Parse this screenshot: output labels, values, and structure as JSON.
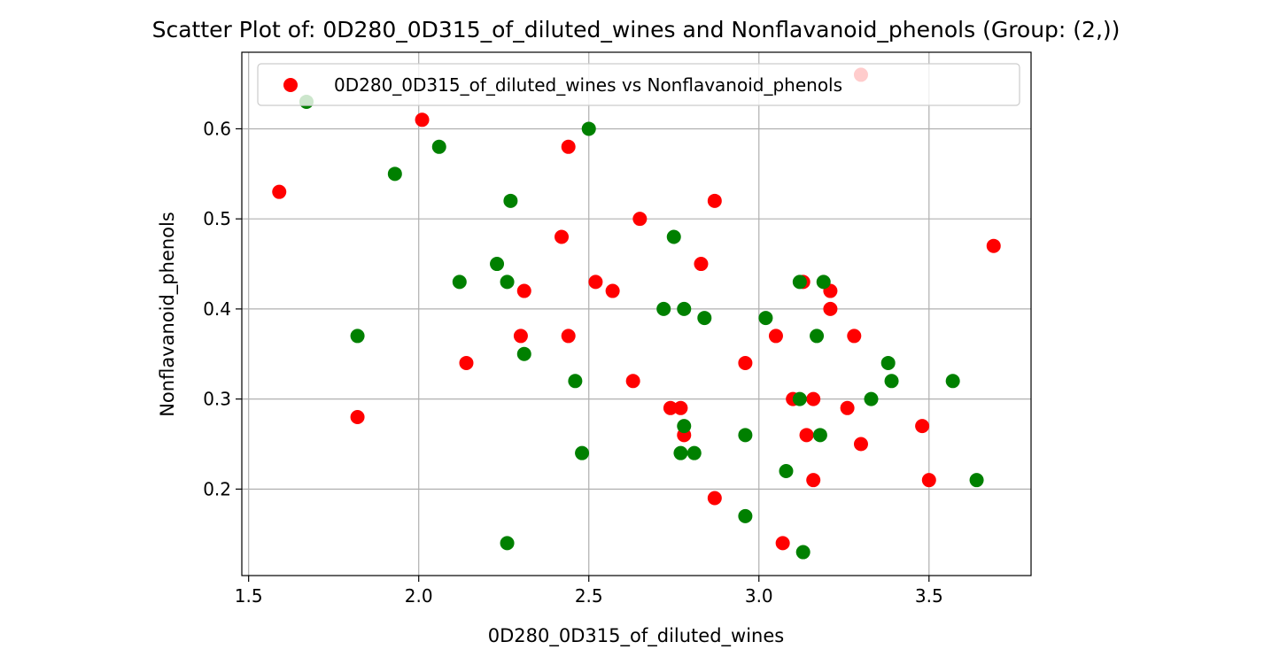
{
  "chart_data": {
    "type": "scatter",
    "title": "Scatter Plot of: 0D280_0D315_of_diluted_wines and Nonflavanoid_phenols (Group: (2,))",
    "xlabel": "0D280_0D315_of_diluted_wines",
    "ylabel": "Nonflavanoid_phenols",
    "xlim": [
      1.48,
      3.8
    ],
    "ylim": [
      0.104,
      0.685
    ],
    "xticks": [
      1.5,
      2.0,
      2.5,
      3.0,
      3.5
    ],
    "xtick_labels": [
      "1.5",
      "2.0",
      "2.5",
      "3.0",
      "3.5"
    ],
    "yticks": [
      0.2,
      0.3,
      0.4,
      0.5,
      0.6
    ],
    "ytick_labels": [
      "0.2",
      "0.3",
      "0.4",
      "0.5",
      "0.6"
    ],
    "grid": true,
    "legend": {
      "placement": "top",
      "label": "0D280_0D315_of_diluted_wines vs Nonflavanoid_phenols",
      "marker_color": "#ff0000"
    },
    "colors": {
      "red": "#ff0000",
      "green": "#008000"
    },
    "points": [
      {
        "x": 1.59,
        "y": 0.53,
        "color": "red"
      },
      {
        "x": 1.82,
        "y": 0.28,
        "color": "red"
      },
      {
        "x": 2.01,
        "y": 0.61,
        "color": "red"
      },
      {
        "x": 2.14,
        "y": 0.34,
        "color": "red"
      },
      {
        "x": 2.3,
        "y": 0.37,
        "color": "red"
      },
      {
        "x": 2.31,
        "y": 0.42,
        "color": "red"
      },
      {
        "x": 2.42,
        "y": 0.48,
        "color": "red"
      },
      {
        "x": 2.44,
        "y": 0.58,
        "color": "red"
      },
      {
        "x": 2.44,
        "y": 0.37,
        "color": "red"
      },
      {
        "x": 2.52,
        "y": 0.43,
        "color": "red"
      },
      {
        "x": 2.57,
        "y": 0.42,
        "color": "red"
      },
      {
        "x": 2.63,
        "y": 0.32,
        "color": "red"
      },
      {
        "x": 2.65,
        "y": 0.5,
        "color": "red"
      },
      {
        "x": 2.74,
        "y": 0.29,
        "color": "red"
      },
      {
        "x": 2.77,
        "y": 0.29,
        "color": "red"
      },
      {
        "x": 2.78,
        "y": 0.26,
        "color": "red"
      },
      {
        "x": 2.83,
        "y": 0.45,
        "color": "red"
      },
      {
        "x": 2.87,
        "y": 0.52,
        "color": "red"
      },
      {
        "x": 2.87,
        "y": 0.19,
        "color": "red"
      },
      {
        "x": 2.96,
        "y": 0.34,
        "color": "red"
      },
      {
        "x": 3.05,
        "y": 0.37,
        "color": "red"
      },
      {
        "x": 3.07,
        "y": 0.14,
        "color": "red"
      },
      {
        "x": 3.1,
        "y": 0.3,
        "color": "red"
      },
      {
        "x": 3.13,
        "y": 0.43,
        "color": "red"
      },
      {
        "x": 3.14,
        "y": 0.26,
        "color": "red"
      },
      {
        "x": 3.16,
        "y": 0.3,
        "color": "red"
      },
      {
        "x": 3.16,
        "y": 0.21,
        "color": "red"
      },
      {
        "x": 3.21,
        "y": 0.42,
        "color": "red"
      },
      {
        "x": 3.21,
        "y": 0.4,
        "color": "red"
      },
      {
        "x": 3.26,
        "y": 0.29,
        "color": "red"
      },
      {
        "x": 3.28,
        "y": 0.37,
        "color": "red"
      },
      {
        "x": 3.3,
        "y": 0.25,
        "color": "red"
      },
      {
        "x": 3.3,
        "y": 0.66,
        "color": "red"
      },
      {
        "x": 3.48,
        "y": 0.27,
        "color": "red"
      },
      {
        "x": 3.5,
        "y": 0.21,
        "color": "red"
      },
      {
        "x": 3.69,
        "y": 0.47,
        "color": "red"
      },
      {
        "x": 1.67,
        "y": 0.63,
        "color": "green"
      },
      {
        "x": 1.82,
        "y": 0.37,
        "color": "green"
      },
      {
        "x": 1.93,
        "y": 0.55,
        "color": "green"
      },
      {
        "x": 2.06,
        "y": 0.58,
        "color": "green"
      },
      {
        "x": 2.12,
        "y": 0.43,
        "color": "green"
      },
      {
        "x": 2.23,
        "y": 0.45,
        "color": "green"
      },
      {
        "x": 2.26,
        "y": 0.43,
        "color": "green"
      },
      {
        "x": 2.26,
        "y": 0.14,
        "color": "green"
      },
      {
        "x": 2.27,
        "y": 0.52,
        "color": "green"
      },
      {
        "x": 2.31,
        "y": 0.35,
        "color": "green"
      },
      {
        "x": 2.46,
        "y": 0.32,
        "color": "green"
      },
      {
        "x": 2.48,
        "y": 0.24,
        "color": "green"
      },
      {
        "x": 2.5,
        "y": 0.6,
        "color": "green"
      },
      {
        "x": 2.72,
        "y": 0.4,
        "color": "green"
      },
      {
        "x": 2.75,
        "y": 0.48,
        "color": "green"
      },
      {
        "x": 2.77,
        "y": 0.24,
        "color": "green"
      },
      {
        "x": 2.78,
        "y": 0.4,
        "color": "green"
      },
      {
        "x": 2.78,
        "y": 0.27,
        "color": "green"
      },
      {
        "x": 2.81,
        "y": 0.24,
        "color": "green"
      },
      {
        "x": 2.84,
        "y": 0.39,
        "color": "green"
      },
      {
        "x": 2.96,
        "y": 0.26,
        "color": "green"
      },
      {
        "x": 2.96,
        "y": 0.17,
        "color": "green"
      },
      {
        "x": 3.02,
        "y": 0.39,
        "color": "green"
      },
      {
        "x": 3.08,
        "y": 0.22,
        "color": "green"
      },
      {
        "x": 3.12,
        "y": 0.43,
        "color": "green"
      },
      {
        "x": 3.12,
        "y": 0.3,
        "color": "green"
      },
      {
        "x": 3.13,
        "y": 0.13,
        "color": "green"
      },
      {
        "x": 3.17,
        "y": 0.37,
        "color": "green"
      },
      {
        "x": 3.18,
        "y": 0.26,
        "color": "green"
      },
      {
        "x": 3.19,
        "y": 0.43,
        "color": "green"
      },
      {
        "x": 3.33,
        "y": 0.3,
        "color": "green"
      },
      {
        "x": 3.38,
        "y": 0.34,
        "color": "green"
      },
      {
        "x": 3.39,
        "y": 0.32,
        "color": "green"
      },
      {
        "x": 3.57,
        "y": 0.32,
        "color": "green"
      },
      {
        "x": 3.64,
        "y": 0.21,
        "color": "green"
      }
    ]
  }
}
